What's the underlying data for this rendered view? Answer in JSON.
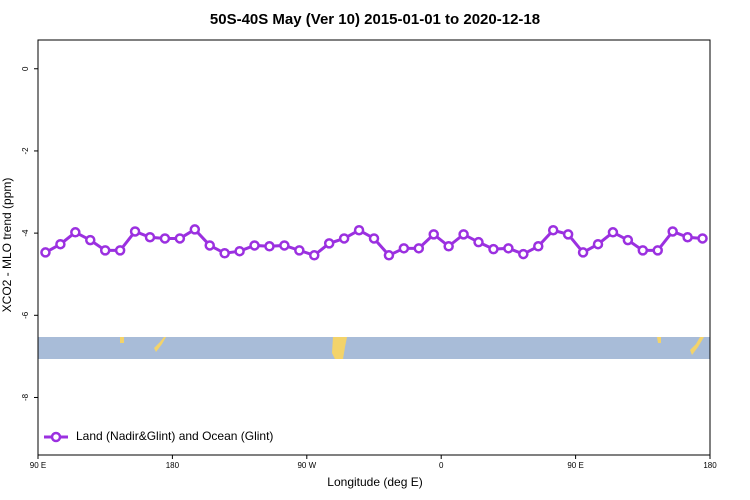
{
  "chart_data": {
    "type": "line",
    "title": "50S-40S May (Ver 10)   2015-01-01 to 2020-12-18",
    "x_label": "Longitude (deg E)",
    "y_label": "XCO2 - MLO trend (ppm)",
    "x": [
      95,
      105,
      115,
      125,
      135,
      145,
      155,
      165,
      175,
      185,
      195,
      205,
      215,
      225,
      235,
      245,
      255,
      265,
      275,
      285,
      295,
      305,
      315,
      325,
      335,
      345,
      355,
      365,
      375,
      385,
      395,
      405,
      415,
      425,
      435,
      445,
      455,
      465,
      475,
      485,
      495,
      505,
      515,
      525,
      535
    ],
    "series": [
      {
        "name": "Land (Nadir&Glint) and Ocean (Glint)",
        "color": "#9b30e0",
        "values": [
          -4.47,
          -4.27,
          -3.98,
          -4.17,
          -4.42,
          -4.42,
          -3.96,
          -4.1,
          -4.13,
          -4.13,
          -3.91,
          -4.3,
          -4.49,
          -4.44,
          -4.3,
          -4.32,
          -4.3,
          -4.42,
          -4.54,
          -4.25,
          -4.13,
          -3.93,
          -4.13,
          -4.54,
          -4.37,
          -4.37,
          -4.03,
          -4.32,
          -4.03,
          -4.22,
          -4.39,
          -4.37,
          -4.51,
          -4.32,
          -3.93,
          -4.03,
          -4.47,
          -4.27,
          -3.98,
          -4.17,
          -4.42,
          -4.42,
          -3.96,
          -4.1,
          -4.13
        ]
      }
    ],
    "xlim": [
      90,
      540
    ],
    "ylim": [
      -9.4,
      0.7
    ],
    "xticks": [
      {
        "value": 90,
        "label": "90 E"
      },
      180,
      {
        "value": 270,
        "label": "90 W"
      },
      {
        "value": 360,
        "label": "0"
      },
      {
        "value": 450,
        "label": "90 E"
      },
      {
        "value": 540,
        "label": "180"
      }
    ],
    "yticks": [
      0,
      -2,
      -4,
      -6,
      -8
    ],
    "legend": "bottomleft"
  }
}
